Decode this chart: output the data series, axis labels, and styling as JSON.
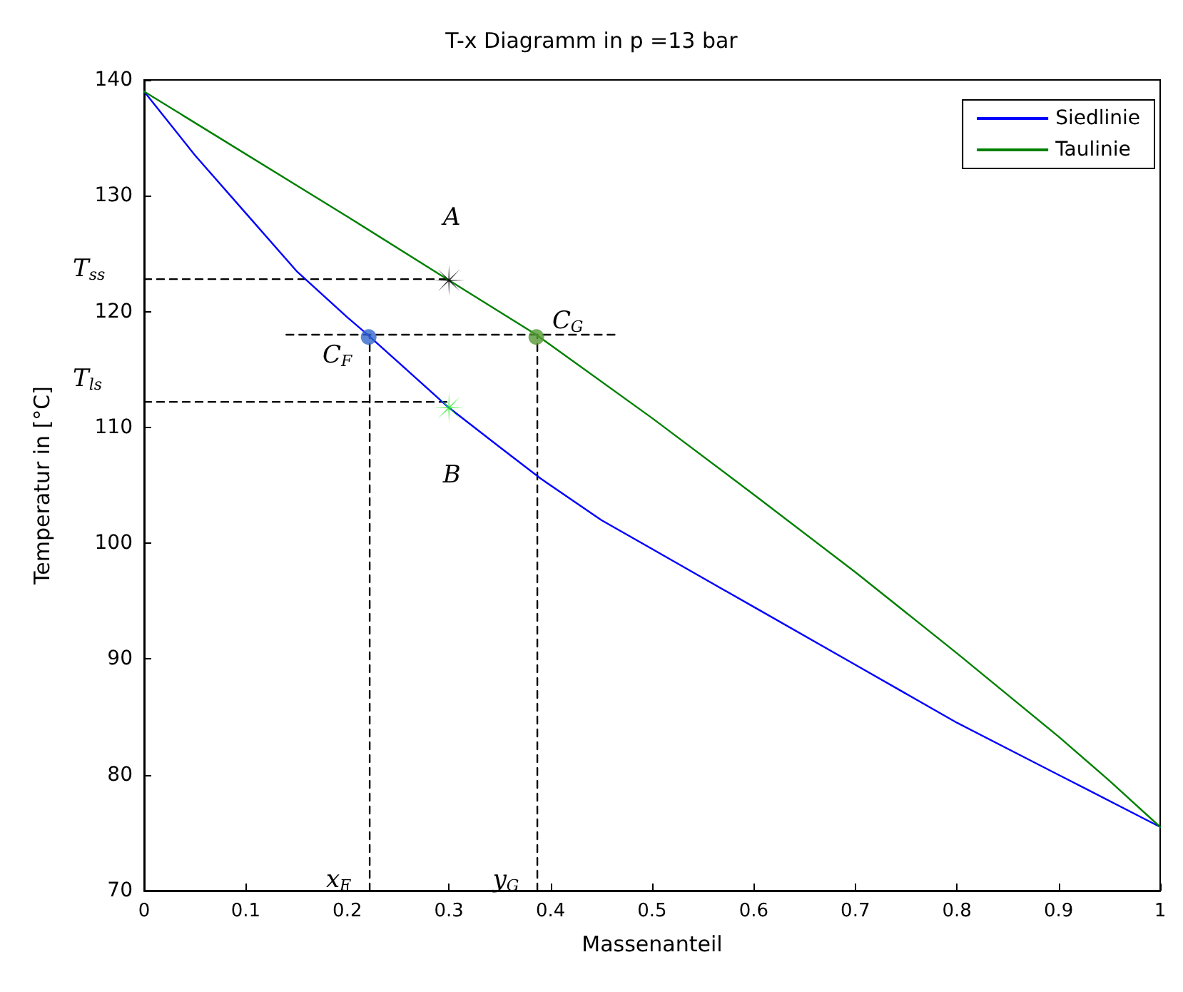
{
  "chart_data": {
    "type": "line",
    "title": "T-x Diagramm in p =13 bar",
    "xlabel": "Massenanteil",
    "ylabel": "Temperatur in [°C]",
    "xlim": [
      0,
      1
    ],
    "ylim": [
      70,
      140
    ],
    "xticks": [
      0,
      0.1,
      0.2,
      0.3,
      0.4,
      0.5,
      0.6,
      0.7,
      0.8,
      0.9,
      1
    ],
    "yticks": [
      70,
      80,
      90,
      100,
      110,
      120,
      130,
      140
    ],
    "grid": false,
    "legend": "top right",
    "line_style": "solid",
    "series": [
      {
        "name": "Siedlinie",
        "color": "#0000ff",
        "x": [
          0,
          0.05,
          0.1,
          0.15,
          0.2,
          0.22,
          0.3,
          0.35,
          0.39,
          0.45,
          0.5,
          0.6,
          0.7,
          0.8,
          0.9,
          1
        ],
        "values": [
          139,
          133.5,
          128.5,
          123.5,
          119.5,
          118,
          111.7,
          108.3,
          105.6,
          102,
          99.5,
          94.5,
          89.5,
          84.5,
          80,
          75.5
        ]
      },
      {
        "name": "Taulinie",
        "color": "#008000",
        "x": [
          0,
          0.1,
          0.2,
          0.3,
          0.386,
          0.5,
          0.6,
          0.7,
          0.8,
          0.9,
          0.95,
          1
        ],
        "values": [
          139,
          133.6,
          128.2,
          122.7,
          118,
          110.8,
          104.2,
          97.5,
          90.5,
          83.3,
          79.5,
          75.5
        ]
      },
      {
        "type": "line",
        "color": "#000000",
        "line_style": "dashed",
        "x": [
          0,
          0.3
        ],
        "values": [
          122.8,
          122.8
        ]
      },
      {
        "type": "line",
        "color": "#000000",
        "line_style": "dashed",
        "x": [
          0.14,
          0.464
        ],
        "values": [
          118,
          118
        ]
      },
      {
        "type": "line",
        "color": "#000000",
        "line_style": "dashed",
        "x": [
          0,
          0.3
        ],
        "values": [
          112.2,
          112.2
        ]
      },
      {
        "type": "line",
        "color": "#000000",
        "line_style": "dashed",
        "x": [
          0.222,
          0.222
        ],
        "values": [
          70,
          118
        ]
      },
      {
        "type": "line",
        "color": "#000000",
        "line_style": "dashed",
        "x": [
          0.387,
          0.387
        ],
        "values": [
          70,
          118
        ]
      },
      {
        "type": "scatter",
        "color": "#000000",
        "marker": "star",
        "x": [
          0.3
        ],
        "values": [
          122.7
        ]
      },
      {
        "type": "scatter",
        "color": "#22ee22",
        "marker": "star",
        "x": [
          0.3
        ],
        "values": [
          111.7
        ]
      },
      {
        "type": "scatter",
        "color": "#3366cc",
        "marker": "circle",
        "x": [
          0.221
        ],
        "values": [
          117.8
        ]
      },
      {
        "type": "scatter",
        "color": "#559933",
        "marker": "circle",
        "x": [
          0.386
        ],
        "values": [
          117.8
        ]
      }
    ],
    "annotations": [
      {
        "text": "A",
        "x": 0.3,
        "y": 122.7
      },
      {
        "text": "B",
        "x": 0.3,
        "y": 111.7
      },
      {
        "text": "C$_{F}$",
        "x": 0.221,
        "y": 117.8
      },
      {
        "text": "C$_{G}$",
        "x": 0.386,
        "y": 117.8
      },
      {
        "text": "T$_{ss}$",
        "x": 0,
        "y": 122.8
      },
      {
        "text": "T$_{ls}$",
        "x": 0,
        "y": 112.2
      },
      {
        "text": "x$_{F}$",
        "x": 0.222,
        "y": 70
      },
      {
        "text": "y$_{G}$",
        "x": 0.387,
        "y": 70
      }
    ]
  }
}
